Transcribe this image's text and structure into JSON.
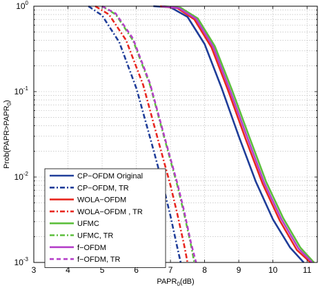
{
  "chart_data": {
    "type": "line",
    "xlabel": "PAPR",
    "xlabel_sub": "0",
    "xlabel_unit": "(dB)",
    "ylabel_prefix": "Prob(PAPR>PAPR",
    "ylabel_sub": "0",
    "ylabel_suffix": ")",
    "xlim": [
      3,
      11.3
    ],
    "ylim": [
      0.001,
      1
    ],
    "yscale": "log",
    "grid": true,
    "legend_position": "bottom-left",
    "x_ticks": [
      "3",
      "4",
      "5",
      "6",
      "7",
      "8",
      "9",
      "10",
      "11"
    ],
    "y_ticks": [
      {
        "base": "10",
        "exp": "0"
      },
      {
        "base": "10",
        "exp": "-1"
      },
      {
        "base": "10",
        "exp": "-2"
      },
      {
        "base": "10",
        "exp": "-3"
      }
    ],
    "series": [
      {
        "name": "CP−OFDM Original",
        "color": "#1f3d99",
        "style": "solid",
        "x": [
          6.5,
          7.0,
          7.5,
          8.0,
          8.5,
          9.0,
          9.5,
          10.0,
          10.5,
          10.9
        ],
        "y": [
          1.0,
          0.97,
          0.75,
          0.36,
          0.11,
          0.03,
          0.0088,
          0.0032,
          0.0015,
          0.001
        ]
      },
      {
        "name": "CP−OFDM, TR",
        "color": "#1f3d99",
        "style": "dashdot",
        "x": [
          4.6,
          5.0,
          5.5,
          6.0,
          6.5,
          6.8,
          7.0,
          7.2,
          7.3
        ],
        "y": [
          1.0,
          0.78,
          0.38,
          0.11,
          0.021,
          0.0075,
          0.0035,
          0.0015,
          0.001
        ]
      },
      {
        "name": "WOLA−OFDM",
        "color": "#e8271f",
        "style": "solid",
        "x": [
          6.7,
          7.2,
          7.7,
          8.2,
          8.7,
          9.2,
          9.7,
          10.2,
          10.7,
          11.1
        ],
        "y": [
          1.0,
          0.95,
          0.7,
          0.33,
          0.1,
          0.028,
          0.0083,
          0.0031,
          0.0014,
          0.001
        ]
      },
      {
        "name": "WOLA−OFDM , TR",
        "color": "#e8271f",
        "style": "dashdot",
        "x": [
          4.8,
          5.2,
          5.7,
          6.2,
          6.7,
          7.0,
          7.2,
          7.4,
          7.5
        ],
        "y": [
          1.0,
          0.8,
          0.4,
          0.12,
          0.022,
          0.008,
          0.0037,
          0.0016,
          0.001
        ]
      },
      {
        "name": "UFMC",
        "color": "#5cbf3c",
        "style": "solid",
        "x": [
          6.8,
          7.3,
          7.8,
          8.3,
          8.8,
          9.3,
          9.8,
          10.3,
          10.8,
          11.2
        ],
        "y": [
          1.0,
          0.96,
          0.72,
          0.34,
          0.105,
          0.03,
          0.0088,
          0.0033,
          0.0015,
          0.001
        ]
      },
      {
        "name": "UFMC, TR",
        "color": "#5cbf3c",
        "style": "dashdot",
        "x": [
          5.0,
          5.4,
          5.9,
          6.4,
          6.9,
          7.2,
          7.4,
          7.6,
          7.7
        ],
        "y": [
          1.0,
          0.8,
          0.4,
          0.12,
          0.022,
          0.008,
          0.0037,
          0.0016,
          0.001
        ]
      },
      {
        "name": "f−OFDM",
        "color": "#b53fc9",
        "style": "solid",
        "x": [
          6.75,
          7.25,
          7.75,
          8.25,
          8.75,
          9.25,
          9.75,
          10.25,
          10.75,
          11.15
        ],
        "y": [
          1.0,
          0.95,
          0.71,
          0.335,
          0.102,
          0.029,
          0.0085,
          0.0032,
          0.00145,
          0.001
        ]
      },
      {
        "name": "f−OFDM, TR",
        "color": "#b53fc9",
        "style": "dashed",
        "x": [
          5.0,
          5.4,
          5.9,
          6.4,
          6.9,
          7.2,
          7.4,
          7.6,
          7.75
        ],
        "y": [
          1.0,
          0.82,
          0.42,
          0.125,
          0.023,
          0.0085,
          0.004,
          0.0017,
          0.001
        ]
      }
    ]
  }
}
